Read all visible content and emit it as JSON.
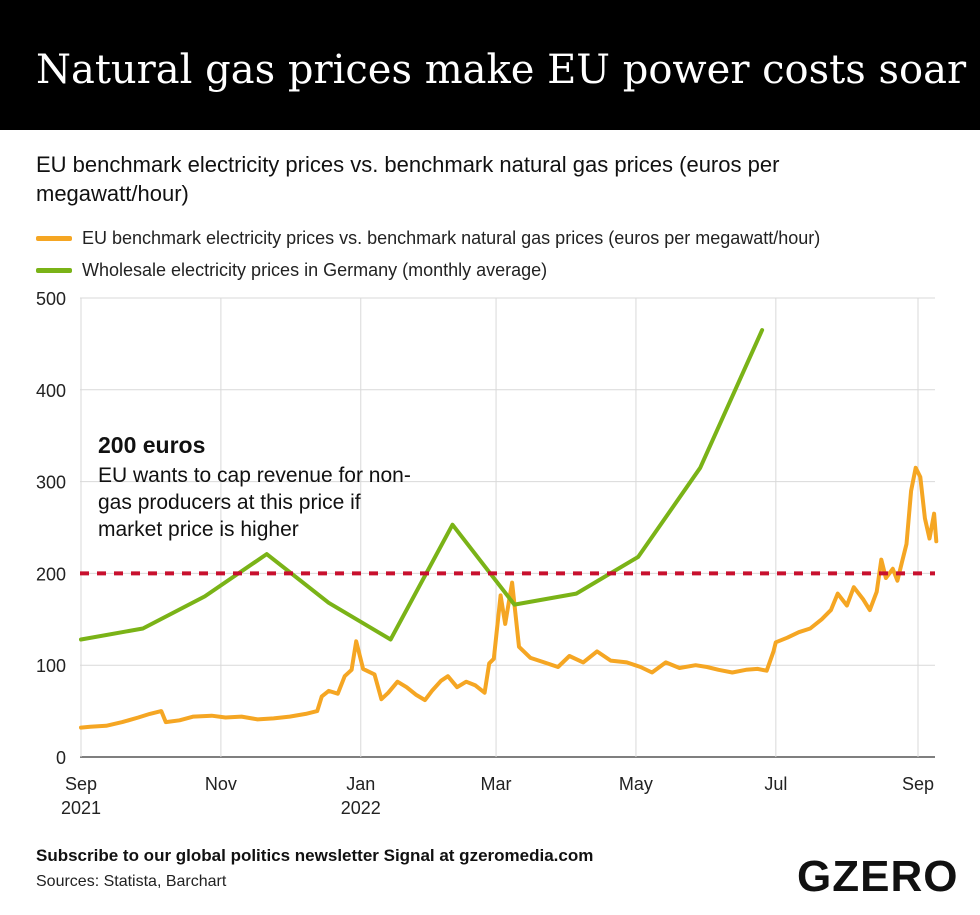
{
  "header": {
    "title": "Natural gas prices make EU power costs soar",
    "subtitle": "EU benchmark electricity prices vs. benchmark natural gas prices (euros per megawatt/hour)"
  },
  "legend": {
    "items": [
      {
        "label": "EU benchmark electricity prices vs. benchmark natural gas prices (euros per megawatt/hour)",
        "color": "#f5a623"
      },
      {
        "label": "Wholesale electricity prices in Germany (monthly average)",
        "color": "#7ab317"
      }
    ]
  },
  "annotation": {
    "title": "200 euros",
    "body": "EU wants to cap revenue for non-gas producers at this price if market price is higher",
    "line_value": 200,
    "line_color": "#c8102e"
  },
  "footer": {
    "subscribe": "Subscribe to our global politics newsletter Signal at gzeromedia.com",
    "sources": "Sources: Statista, Barchart",
    "logo": "GZERO"
  },
  "chart_data": {
    "type": "line",
    "ylim": [
      0,
      500
    ],
    "yticks": [
      0,
      100,
      200,
      300,
      400,
      500
    ],
    "xticks": [
      {
        "date": "2021-09-01",
        "label": "Sep",
        "sublabel": "2021"
      },
      {
        "date": "2021-11-01",
        "label": "Nov",
        "sublabel": ""
      },
      {
        "date": "2022-01-01",
        "label": "Jan",
        "sublabel": "2022"
      },
      {
        "date": "2022-03-01",
        "label": "Mar",
        "sublabel": ""
      },
      {
        "date": "2022-05-01",
        "label": "May",
        "sublabel": ""
      },
      {
        "date": "2022-07-01",
        "label": "Jul",
        "sublabel": ""
      },
      {
        "date": "2022-09-01",
        "label": "Sep",
        "sublabel": ""
      }
    ],
    "series": [
      {
        "name": "EU benchmark electricity prices vs. benchmark natural gas prices (euros per megawatt/hour)",
        "color": "#f5a623",
        "points": [
          [
            "2021-09-01",
            32
          ],
          [
            "2021-09-05",
            33
          ],
          [
            "2021-09-12",
            34
          ],
          [
            "2021-09-19",
            38
          ],
          [
            "2021-09-26",
            43
          ],
          [
            "2021-10-01",
            47
          ],
          [
            "2021-10-06",
            50
          ],
          [
            "2021-10-08",
            38
          ],
          [
            "2021-10-14",
            40
          ],
          [
            "2021-10-20",
            44
          ],
          [
            "2021-10-28",
            45
          ],
          [
            "2021-11-03",
            43
          ],
          [
            "2021-11-10",
            44
          ],
          [
            "2021-11-17",
            41
          ],
          [
            "2021-11-24",
            42
          ],
          [
            "2021-12-01",
            44
          ],
          [
            "2021-12-08",
            47
          ],
          [
            "2021-12-13",
            50
          ],
          [
            "2021-12-15",
            66
          ],
          [
            "2021-12-18",
            72
          ],
          [
            "2021-12-22",
            69
          ],
          [
            "2021-12-25",
            88
          ],
          [
            "2021-12-28",
            95
          ],
          [
            "2021-12-30",
            126
          ],
          [
            "2022-01-02",
            96
          ],
          [
            "2022-01-07",
            90
          ],
          [
            "2022-01-10",
            63
          ],
          [
            "2022-01-13",
            70
          ],
          [
            "2022-01-17",
            82
          ],
          [
            "2022-01-21",
            76
          ],
          [
            "2022-01-25",
            68
          ],
          [
            "2022-01-29",
            62
          ],
          [
            "2022-02-01",
            72
          ],
          [
            "2022-02-05",
            83
          ],
          [
            "2022-02-08",
            88
          ],
          [
            "2022-02-12",
            76
          ],
          [
            "2022-02-16",
            82
          ],
          [
            "2022-02-20",
            78
          ],
          [
            "2022-02-24",
            70
          ],
          [
            "2022-02-26",
            102
          ],
          [
            "2022-02-28",
            107
          ],
          [
            "2022-03-03",
            176
          ],
          [
            "2022-03-05",
            145
          ],
          [
            "2022-03-08",
            190
          ],
          [
            "2022-03-11",
            120
          ],
          [
            "2022-03-16",
            108
          ],
          [
            "2022-03-22",
            103
          ],
          [
            "2022-03-28",
            98
          ],
          [
            "2022-04-02",
            110
          ],
          [
            "2022-04-08",
            103
          ],
          [
            "2022-04-14",
            115
          ],
          [
            "2022-04-20",
            105
          ],
          [
            "2022-04-27",
            103
          ],
          [
            "2022-05-03",
            98
          ],
          [
            "2022-05-08",
            92
          ],
          [
            "2022-05-14",
            103
          ],
          [
            "2022-05-20",
            97
          ],
          [
            "2022-05-27",
            100
          ],
          [
            "2022-06-01",
            98
          ],
          [
            "2022-06-06",
            95
          ],
          [
            "2022-06-12",
            92
          ],
          [
            "2022-06-18",
            95
          ],
          [
            "2022-06-23",
            96
          ],
          [
            "2022-06-27",
            94
          ],
          [
            "2022-06-30",
            115
          ],
          [
            "2022-07-01",
            125
          ],
          [
            "2022-07-06",
            130
          ],
          [
            "2022-07-11",
            136
          ],
          [
            "2022-07-16",
            140
          ],
          [
            "2022-07-21",
            150
          ],
          [
            "2022-07-25",
            160
          ],
          [
            "2022-07-28",
            178
          ],
          [
            "2022-08-01",
            165
          ],
          [
            "2022-08-04",
            185
          ],
          [
            "2022-08-08",
            172
          ],
          [
            "2022-08-11",
            160
          ],
          [
            "2022-08-14",
            180
          ],
          [
            "2022-08-16",
            215
          ],
          [
            "2022-08-18",
            195
          ],
          [
            "2022-08-21",
            205
          ],
          [
            "2022-08-23",
            192
          ],
          [
            "2022-08-25",
            212
          ],
          [
            "2022-08-27",
            232
          ],
          [
            "2022-08-29",
            290
          ],
          [
            "2022-08-31",
            315
          ],
          [
            "2022-09-02",
            305
          ],
          [
            "2022-09-04",
            260
          ],
          [
            "2022-09-06",
            238
          ],
          [
            "2022-09-08",
            265
          ],
          [
            "2022-09-09",
            235
          ]
        ]
      },
      {
        "name": "Wholesale electricity prices in Germany (monthly average)",
        "color": "#7ab317",
        "points": [
          [
            "2021-09-01",
            128
          ],
          [
            "2021-09-28",
            140
          ],
          [
            "2021-10-25",
            175
          ],
          [
            "2021-11-21",
            221
          ],
          [
            "2021-12-18",
            168
          ],
          [
            "2022-01-14",
            128
          ],
          [
            "2022-02-10",
            253
          ],
          [
            "2022-03-09",
            166
          ],
          [
            "2022-04-05",
            178
          ],
          [
            "2022-05-02",
            218
          ],
          [
            "2022-05-29",
            315
          ],
          [
            "2022-06-25",
            465
          ]
        ]
      }
    ]
  }
}
